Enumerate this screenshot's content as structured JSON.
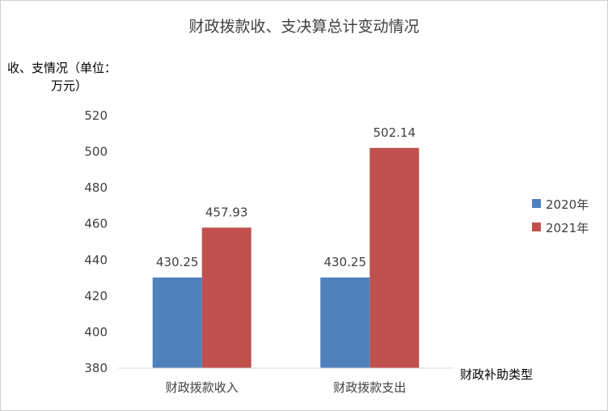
{
  "chart_data": {
    "type": "bar",
    "title": "财政拨款收、支决算总计变动情况",
    "ylabel_line1": "收、支情况（单位：",
    "ylabel_line2": "万元）",
    "xlabel": "财政补助类型",
    "ylim": [
      380,
      520
    ],
    "yticks": [
      380,
      400,
      420,
      440,
      460,
      480,
      500,
      520
    ],
    "categories": [
      "财政拨款收入",
      "财政拨款支出"
    ],
    "series": [
      {
        "name": "2020年",
        "color": "#4F81BD",
        "values": [
          430.25,
          430.25
        ]
      },
      {
        "name": "2021年",
        "color": "#C0504D",
        "values": [
          457.93,
          502.14
        ]
      }
    ],
    "data_labels": [
      [
        "430.25",
        "430.25"
      ],
      [
        "457.93",
        "502.14"
      ]
    ],
    "legend_position": "right",
    "grid": false
  }
}
